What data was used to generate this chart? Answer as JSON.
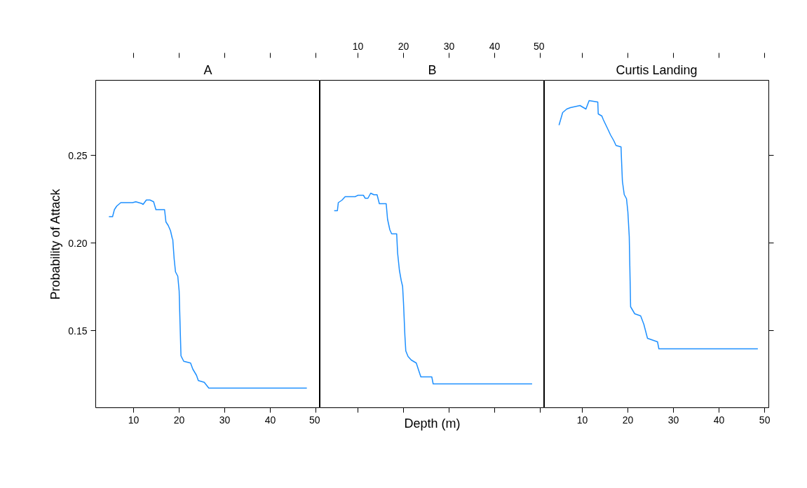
{
  "chart_data": [
    {
      "type": "line",
      "title": "A",
      "ylabel": "Probability of Attack",
      "xlim": [
        1.7,
        50.9
      ],
      "xticks": [
        10,
        20,
        30,
        40,
        50
      ],
      "ylim": [
        0.106,
        0.2928
      ],
      "yticks": [
        {
          "value": 0.15,
          "label": "0.15"
        },
        {
          "value": 0.2,
          "label": "0.20"
        },
        {
          "value": 0.25,
          "label": "0.25"
        }
      ],
      "series": [
        {
          "color": "#1e90ff",
          "x": [
            4.6,
            5.4,
            5.8,
            6.3,
            7.2,
            9.8,
            10.5,
            11.8,
            12.1,
            12.8,
            13.6,
            14.4,
            14.9,
            16.8,
            17.1,
            17.6,
            18.1,
            18.5,
            18.6,
            18.9,
            19.2,
            19.7,
            20.0,
            20.2,
            20.4,
            21.0,
            22.5,
            23.0,
            23.8,
            24.2,
            25.5,
            26.5,
            48.0
          ],
          "values": [
            0.215,
            0.215,
            0.219,
            0.221,
            0.223,
            0.223,
            0.2235,
            0.2225,
            0.222,
            0.2245,
            0.2245,
            0.2235,
            0.219,
            0.219,
            0.212,
            0.21,
            0.207,
            0.2025,
            0.202,
            0.191,
            0.1835,
            0.181,
            0.1725,
            0.1536,
            0.1356,
            0.1325,
            0.1315,
            0.128,
            0.1245,
            0.1215,
            0.1205,
            0.1172,
            0.1172
          ]
        }
      ]
    },
    {
      "type": "line",
      "title": "B",
      "xlabel": "Depth (m)",
      "tick_labels": "x",
      "xlim": [
        1.7,
        50.9
      ],
      "xticks": [
        10,
        20,
        30,
        40,
        50
      ],
      "ylim": [
        0.106,
        0.2928
      ],
      "series": [
        {
          "color": "#1e90ff",
          "x": [
            4.8,
            5.5,
            5.7,
            6.5,
            7.2,
            9.4,
            10.0,
            11.2,
            11.6,
            12.2,
            12.8,
            13.5,
            14.2,
            14.7,
            16.2,
            16.5,
            17.0,
            17.4,
            18.5,
            18.7,
            19.1,
            19.5,
            19.8,
            20.0,
            20.3,
            20.5,
            21.0,
            21.7,
            22.8,
            23.3,
            23.8,
            26.2,
            26.5,
            48.2
          ],
          "values": [
            0.2184,
            0.2184,
            0.223,
            0.2244,
            0.2264,
            0.2264,
            0.2272,
            0.2272,
            0.2255,
            0.2255,
            0.2284,
            0.2275,
            0.2275,
            0.2224,
            0.2224,
            0.2135,
            0.2075,
            0.2052,
            0.2052,
            0.1944,
            0.1844,
            0.1785,
            0.1752,
            0.1656,
            0.1472,
            0.1384,
            0.1352,
            0.1332,
            0.1315,
            0.1275,
            0.1236,
            0.1236,
            0.1196,
            0.1196
          ]
        }
      ]
    },
    {
      "type": "line",
      "title": "Curtis Landing",
      "tick_labels": "x",
      "xlim": [
        1.7,
        50.9
      ],
      "xticks": [
        10,
        20,
        30,
        40,
        50
      ],
      "ylim": [
        0.106,
        0.2928
      ],
      "yticks": [
        {
          "value": 0.15,
          "label": null
        },
        {
          "value": 0.2,
          "label": null
        },
        {
          "value": 0.25,
          "label": null
        }
      ],
      "series": [
        {
          "color": "#1e90ff",
          "x": [
            4.9,
            5.7,
            6.6,
            7.4,
            8.8,
            9.5,
            10.8,
            11.5,
            13.4,
            13.5,
            14.3,
            14.6,
            15.7,
            16.2,
            16.9,
            17.4,
            18.5,
            18.6,
            18.8,
            19.2,
            19.7,
            20.0,
            20.3,
            20.5,
            20.6,
            21.5,
            22.8,
            23.5,
            24.3,
            26.5,
            26.8,
            48.5
          ],
          "values": [
            0.2672,
            0.2744,
            0.2764,
            0.2772,
            0.278,
            0.2784,
            0.2764,
            0.2812,
            0.2804,
            0.2736,
            0.2724,
            0.2704,
            0.2644,
            0.2616,
            0.2584,
            0.2556,
            0.2548,
            0.2476,
            0.2352,
            0.2276,
            0.2252,
            0.2176,
            0.2036,
            0.1772,
            0.1636,
            0.1596,
            0.1584,
            0.1536,
            0.1456,
            0.1436,
            0.1396,
            0.1396
          ]
        }
      ]
    }
  ]
}
